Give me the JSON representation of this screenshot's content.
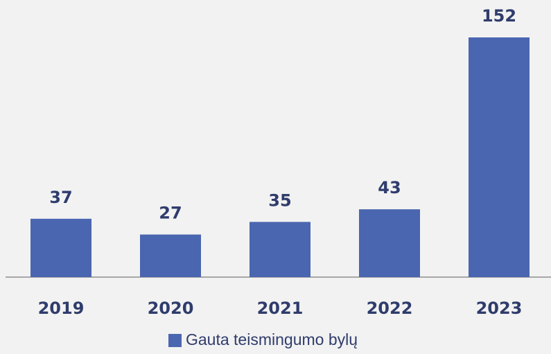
{
  "chart_data": {
    "type": "bar",
    "categories": [
      "2019",
      "2020",
      "2021",
      "2022",
      "2023"
    ],
    "series": [
      {
        "name": "Gauta teismingumo bylų",
        "color": "#4a66b0",
        "values": [
          37,
          27,
          35,
          43,
          152
        ]
      }
    ],
    "legend": "bottom"
  }
}
